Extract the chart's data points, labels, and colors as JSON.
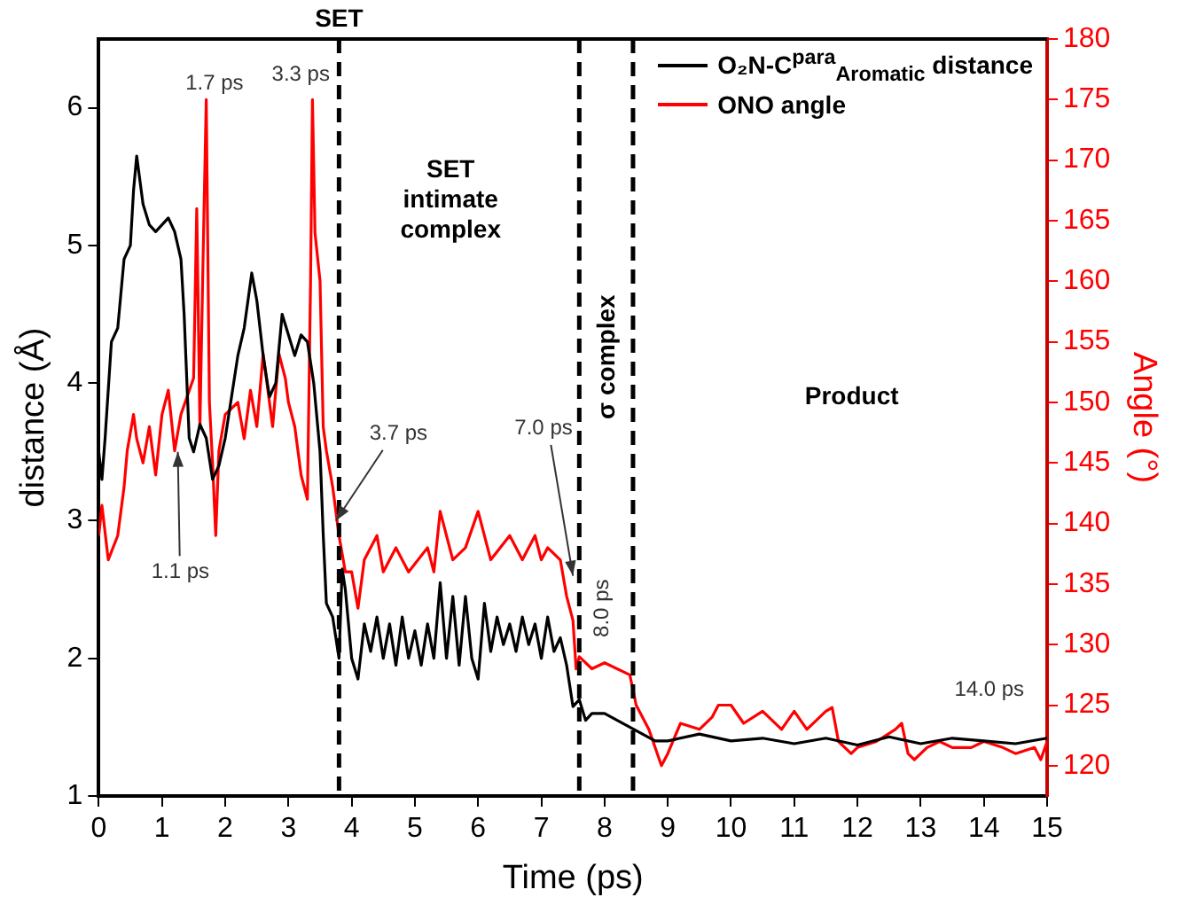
{
  "chart_data": {
    "type": "line",
    "xlabel": "Time (ps)",
    "ylabel": "distance (Å)",
    "y2label": "Angle (°)",
    "xlim": [
      0,
      15
    ],
    "xticks": [
      0,
      1,
      2,
      3,
      4,
      5,
      6,
      7,
      8,
      9,
      10,
      11,
      12,
      13,
      14,
      15
    ],
    "ylim": [
      1,
      6.5
    ],
    "yticks": [
      1,
      2,
      3,
      4,
      5,
      6
    ],
    "y2lim": [
      117.5,
      180
    ],
    "y2ticks": [
      120,
      125,
      130,
      135,
      140,
      145,
      150,
      155,
      160,
      165,
      170,
      175,
      180
    ],
    "grid": false,
    "legend": "top right",
    "marker": "none",
    "line_style": "solid",
    "series": [
      {
        "name": "O₂N-C$^{para}$$_{Aromatic}$ distance",
        "color": "#000000",
        "x": [
          0,
          0.05,
          0.1,
          0.2,
          0.3,
          0.4,
          0.5,
          0.55,
          0.6,
          0.7,
          0.8,
          0.9,
          1.0,
          1.1,
          1.2,
          1.3,
          1.35,
          1.43,
          1.5,
          1.6,
          1.7,
          1.8,
          1.9,
          2.0,
          2.1,
          2.2,
          2.3,
          2.42,
          2.5,
          2.6,
          2.7,
          2.8,
          2.9,
          3.0,
          3.1,
          3.2,
          3.3,
          3.4,
          3.5,
          3.55,
          3.6,
          3.7,
          3.8,
          3.85,
          3.9,
          4.0,
          4.1,
          4.2,
          4.3,
          4.4,
          4.5,
          4.6,
          4.7,
          4.8,
          4.9,
          5.0,
          5.1,
          5.2,
          5.3,
          5.4,
          5.5,
          5.6,
          5.7,
          5.8,
          5.9,
          6.0,
          6.1,
          6.2,
          6.3,
          6.4,
          6.5,
          6.6,
          6.7,
          6.8,
          6.9,
          7.0,
          7.1,
          7.2,
          7.3,
          7.4,
          7.5,
          7.6,
          7.7,
          7.8,
          8.0,
          8.2,
          8.4,
          8.6,
          8.8,
          9.0,
          9.5,
          10,
          10.5,
          11,
          11.5,
          12,
          12.5,
          13,
          13.5,
          14,
          14.5,
          15
        ],
        "values": [
          3.5,
          3.3,
          3.6,
          4.3,
          4.4,
          4.9,
          5.0,
          5.4,
          5.65,
          5.3,
          5.15,
          5.1,
          5.15,
          5.2,
          5.1,
          4.9,
          4.5,
          3.6,
          3.5,
          3.7,
          3.6,
          3.3,
          3.4,
          3.6,
          3.9,
          4.2,
          4.4,
          4.8,
          4.6,
          4.2,
          3.9,
          4.0,
          4.5,
          4.35,
          4.2,
          4.35,
          4.3,
          4.0,
          3.5,
          2.9,
          2.4,
          2.3,
          2.0,
          2.65,
          2.5,
          2.0,
          1.85,
          2.25,
          2.05,
          2.3,
          2.0,
          2.25,
          1.95,
          2.3,
          2.0,
          2.2,
          1.95,
          2.25,
          2.0,
          2.55,
          2.0,
          2.45,
          1.95,
          2.45,
          2.0,
          1.85,
          2.4,
          2.05,
          2.3,
          2.1,
          2.25,
          2.05,
          2.3,
          2.1,
          2.25,
          2.0,
          2.3,
          2.05,
          2.15,
          1.95,
          1.65,
          1.7,
          1.55,
          1.6,
          1.6,
          1.55,
          1.5,
          1.45,
          1.4,
          1.4,
          1.45,
          1.4,
          1.42,
          1.38,
          1.42,
          1.37,
          1.43,
          1.38,
          1.42,
          1.4,
          1.38,
          1.42
        ]
      },
      {
        "name": "ONO angle",
        "color": "#ff0000",
        "axis": "y2",
        "x": [
          0,
          0.05,
          0.15,
          0.3,
          0.4,
          0.45,
          0.55,
          0.6,
          0.7,
          0.8,
          0.9,
          1.0,
          1.1,
          1.2,
          1.3,
          1.5,
          1.55,
          1.6,
          1.65,
          1.7,
          1.75,
          1.8,
          1.85,
          1.9,
          2.0,
          2.2,
          2.3,
          2.4,
          2.5,
          2.6,
          2.75,
          2.85,
          2.95,
          3.0,
          3.1,
          3.15,
          3.2,
          3.3,
          3.35,
          3.38,
          3.42,
          3.5,
          3.55,
          3.6,
          3.7,
          3.8,
          3.9,
          4.0,
          4.1,
          4.2,
          4.4,
          4.5,
          4.7,
          4.9,
          5.2,
          5.3,
          5.4,
          5.6,
          5.8,
          6.0,
          6.2,
          6.5,
          6.7,
          6.9,
          7.0,
          7.1,
          7.3,
          7.4,
          7.5,
          7.55,
          7.6,
          7.8,
          8.0,
          8.4,
          8.5,
          8.7,
          8.9,
          9.0,
          9.2,
          9.5,
          9.7,
          9.8,
          10.0,
          10.2,
          10.5,
          10.8,
          11.0,
          11.2,
          11.5,
          11.6,
          11.7,
          11.9,
          12.0,
          12.3,
          12.6,
          12.7,
          12.8,
          12.9,
          13.1,
          13.3,
          13.5,
          13.8,
          14.0,
          14.3,
          14.5,
          14.8,
          14.9,
          15.0
        ],
        "values": [
          139,
          141.5,
          137,
          139,
          143,
          146,
          149,
          147,
          145,
          148,
          144,
          149,
          151,
          146,
          149,
          152,
          166,
          148,
          162,
          175,
          150,
          145,
          139,
          146,
          149,
          150,
          147,
          151,
          148,
          154,
          148,
          154,
          152,
          150,
          148,
          146,
          144,
          142,
          160,
          175,
          164,
          160,
          148,
          146,
          143,
          139,
          136,
          136,
          133,
          137,
          139,
          136,
          138,
          136,
          138,
          136,
          141,
          137,
          138,
          141,
          137,
          139,
          137,
          139,
          137,
          138,
          137,
          134,
          132,
          128,
          129,
          128,
          128.5,
          127.5,
          125,
          123,
          120,
          121,
          123.5,
          123,
          124,
          125,
          125,
          123.5,
          124.5,
          123,
          124.5,
          123,
          124.5,
          124.8,
          122,
          121,
          121.5,
          122,
          123,
          123.5,
          121,
          120.5,
          121.5,
          122,
          121.5,
          121.5,
          122,
          121.5,
          121,
          121.5,
          120.5,
          122
        ]
      }
    ],
    "ref_lines": [
      {
        "axis": "x",
        "value": 3.8,
        "label": "SET",
        "color": "#000000",
        "line_style": "dashed"
      },
      {
        "axis": "x",
        "value": 7.6,
        "color": "#000000",
        "line_style": "dashed"
      },
      {
        "axis": "x",
        "value": 8.45,
        "color": "#000000",
        "line_style": "dashed"
      }
    ],
    "annotations": [
      "SET\nintimate\ncomplex",
      "σ complex",
      "Product",
      "1.7 ps",
      "3.3 ps",
      {
        "text": "3.7 ps",
        "x": 3.75,
        "y": 3.0
      },
      {
        "text": "7.0 ps",
        "x": 7.5,
        "y": 2.6
      },
      {
        "text": "1.1 ps",
        "x": 1.25,
        "y": 3.5
      },
      "8.0 ps",
      "14.0 ps"
    ]
  }
}
